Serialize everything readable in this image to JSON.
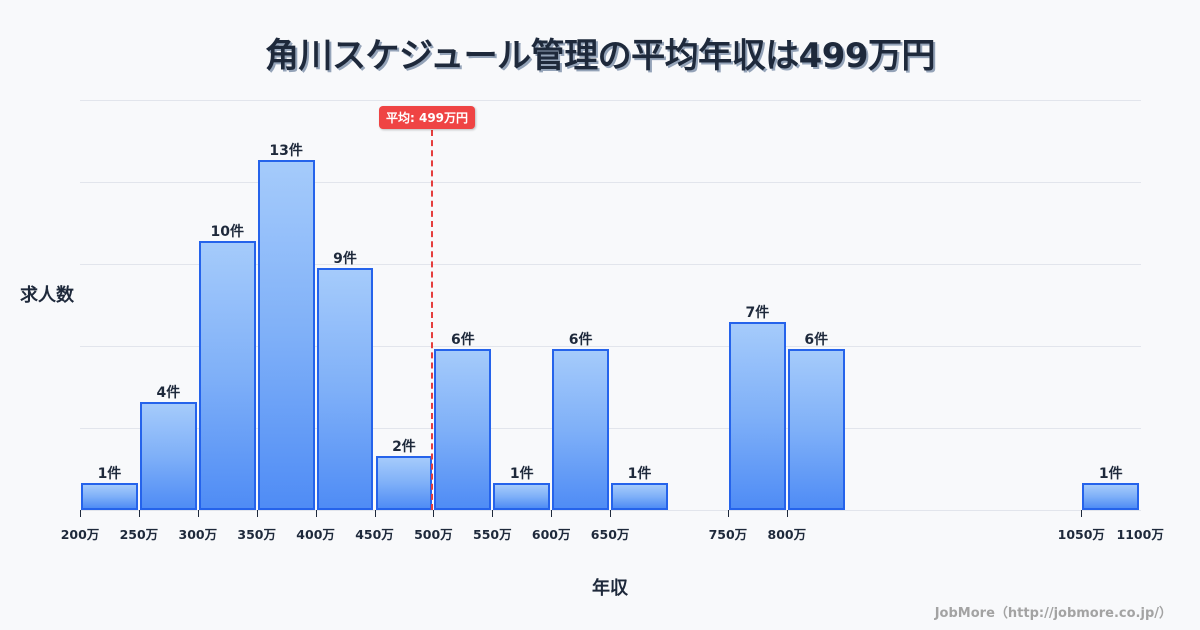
{
  "title": "角川スケジュール管理の平均年収は499万円",
  "average_badge": "平均: 499万円",
  "y_axis_label": "求人数",
  "x_axis_label": "年収",
  "credit": "JobMore（http://jobmore.co.jp/）",
  "colors": {
    "bar_border": "#2563eb",
    "bar_fill_top": "#a5cbfb",
    "bar_fill_bottom": "#4f8cf5",
    "average_line": "#e53e3e",
    "text": "#1e293b",
    "grid": "#e2e5ec"
  },
  "x_ticks": [
    "200万",
    "250万",
    "300万",
    "350万",
    "400万",
    "450万",
    "500万",
    "550万",
    "600万",
    "650万",
    "750万",
    "800万",
    "1050万",
    "1100万"
  ],
  "bars": [
    {
      "range": "200-250万",
      "count": 1,
      "label": "1件"
    },
    {
      "range": "250-300万",
      "count": 4,
      "label": "4件"
    },
    {
      "range": "300-350万",
      "count": 10,
      "label": "10件"
    },
    {
      "range": "350-400万",
      "count": 13,
      "label": "13件"
    },
    {
      "range": "400-450万",
      "count": 9,
      "label": "9件"
    },
    {
      "range": "450-500万",
      "count": 2,
      "label": "2件"
    },
    {
      "range": "500-550万",
      "count": 6,
      "label": "6件"
    },
    {
      "range": "550-600万",
      "count": 1,
      "label": "1件"
    },
    {
      "range": "600-650万",
      "count": 6,
      "label": "6件"
    },
    {
      "range": "650-700万",
      "count": 1,
      "label": "1件"
    },
    {
      "range": "750-800万",
      "count": 7,
      "label": "7件"
    },
    {
      "range": "800-850万",
      "count": 6,
      "label": "6件"
    },
    {
      "range": "1050-1100万",
      "count": 1,
      "label": "1件"
    }
  ],
  "chart_data": {
    "type": "bar",
    "title": "角川スケジュール管理の平均年収は499万円",
    "xlabel": "年収",
    "ylabel": "求人数",
    "categories": [
      "200-250万",
      "250-300万",
      "300-350万",
      "350-400万",
      "400-450万",
      "450-500万",
      "500-550万",
      "550-600万",
      "600-650万",
      "650-700万",
      "750-800万",
      "800-850万",
      "1050-1100万"
    ],
    "values": [
      1,
      4,
      10,
      13,
      9,
      2,
      6,
      1,
      6,
      1,
      7,
      6,
      1
    ],
    "value_unit": "件",
    "x_unit": "万円",
    "x_tick_labels": [
      "200万",
      "250万",
      "300万",
      "350万",
      "400万",
      "450万",
      "500万",
      "550万",
      "600万",
      "650万",
      "750万",
      "800万",
      "1050万",
      "1100万"
    ],
    "xlim": [
      200,
      1100
    ],
    "ylim": [
      0,
      15
    ],
    "grid": true,
    "annotations": [
      {
        "type": "vline",
        "x": 499,
        "label": "平均: 499万円",
        "style": "dashed",
        "color": "#e53e3e"
      }
    ]
  }
}
